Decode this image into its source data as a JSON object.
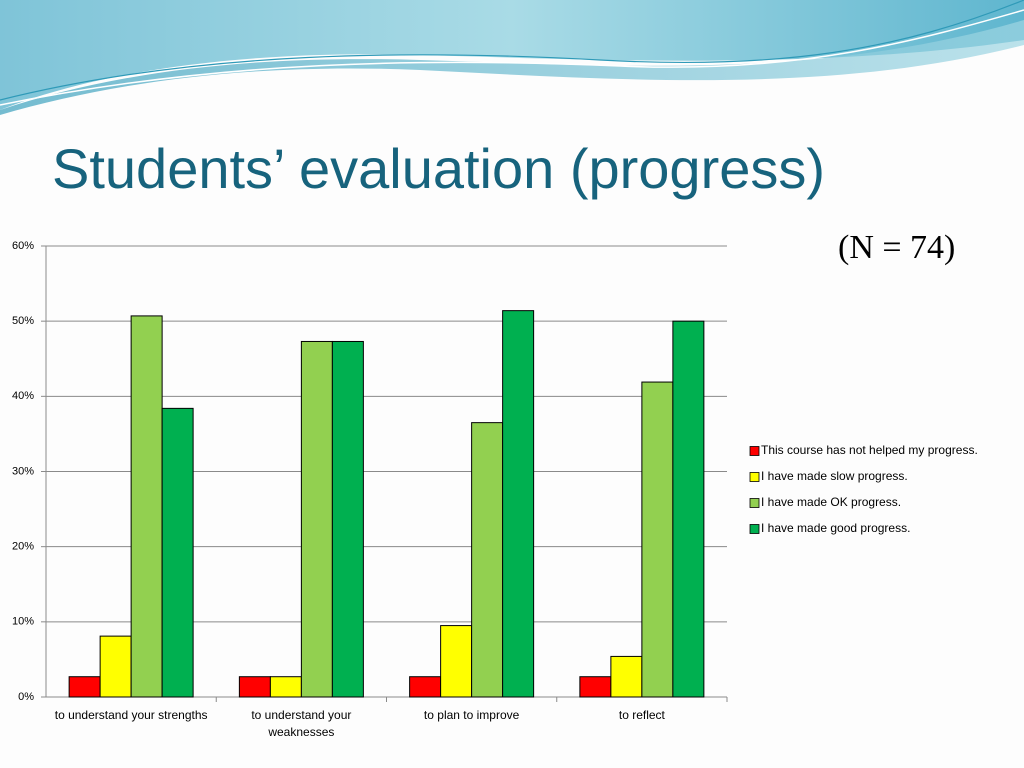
{
  "chart_data": {
    "type": "bar",
    "title": "Students’ evaluation (progress)",
    "annotation": "(N = 74)",
    "categories": [
      "to understand your strengths",
      "to understand your weaknesses",
      "to plan to improve",
      "to reflect"
    ],
    "series": [
      {
        "name": "This course has not helped my progress.",
        "color": "#ff0000",
        "values": [
          2.7,
          2.7,
          2.7,
          2.7
        ]
      },
      {
        "name": "I have made slow progress.",
        "color": "#ffff00",
        "values": [
          8.1,
          2.7,
          9.5,
          5.4
        ]
      },
      {
        "name": "I have made OK progress.",
        "color": "#92d050",
        "values": [
          50.7,
          47.3,
          36.5,
          41.9
        ]
      },
      {
        "name": "I have made good progress.",
        "color": "#00b050",
        "values": [
          38.4,
          47.3,
          51.4,
          50.0
        ]
      }
    ],
    "ylim": [
      0,
      60
    ],
    "yticks": [
      {
        "value": 0,
        "label": "0%"
      },
      {
        "value": 10,
        "label": "10%"
      },
      {
        "value": 20,
        "label": "20%"
      },
      {
        "value": 30,
        "label": "30%"
      },
      {
        "value": 40,
        "label": "40%"
      },
      {
        "value": 50,
        "label": "50%"
      },
      {
        "value": 60,
        "label": "60%"
      }
    ],
    "grid": true,
    "legend": "right"
  }
}
